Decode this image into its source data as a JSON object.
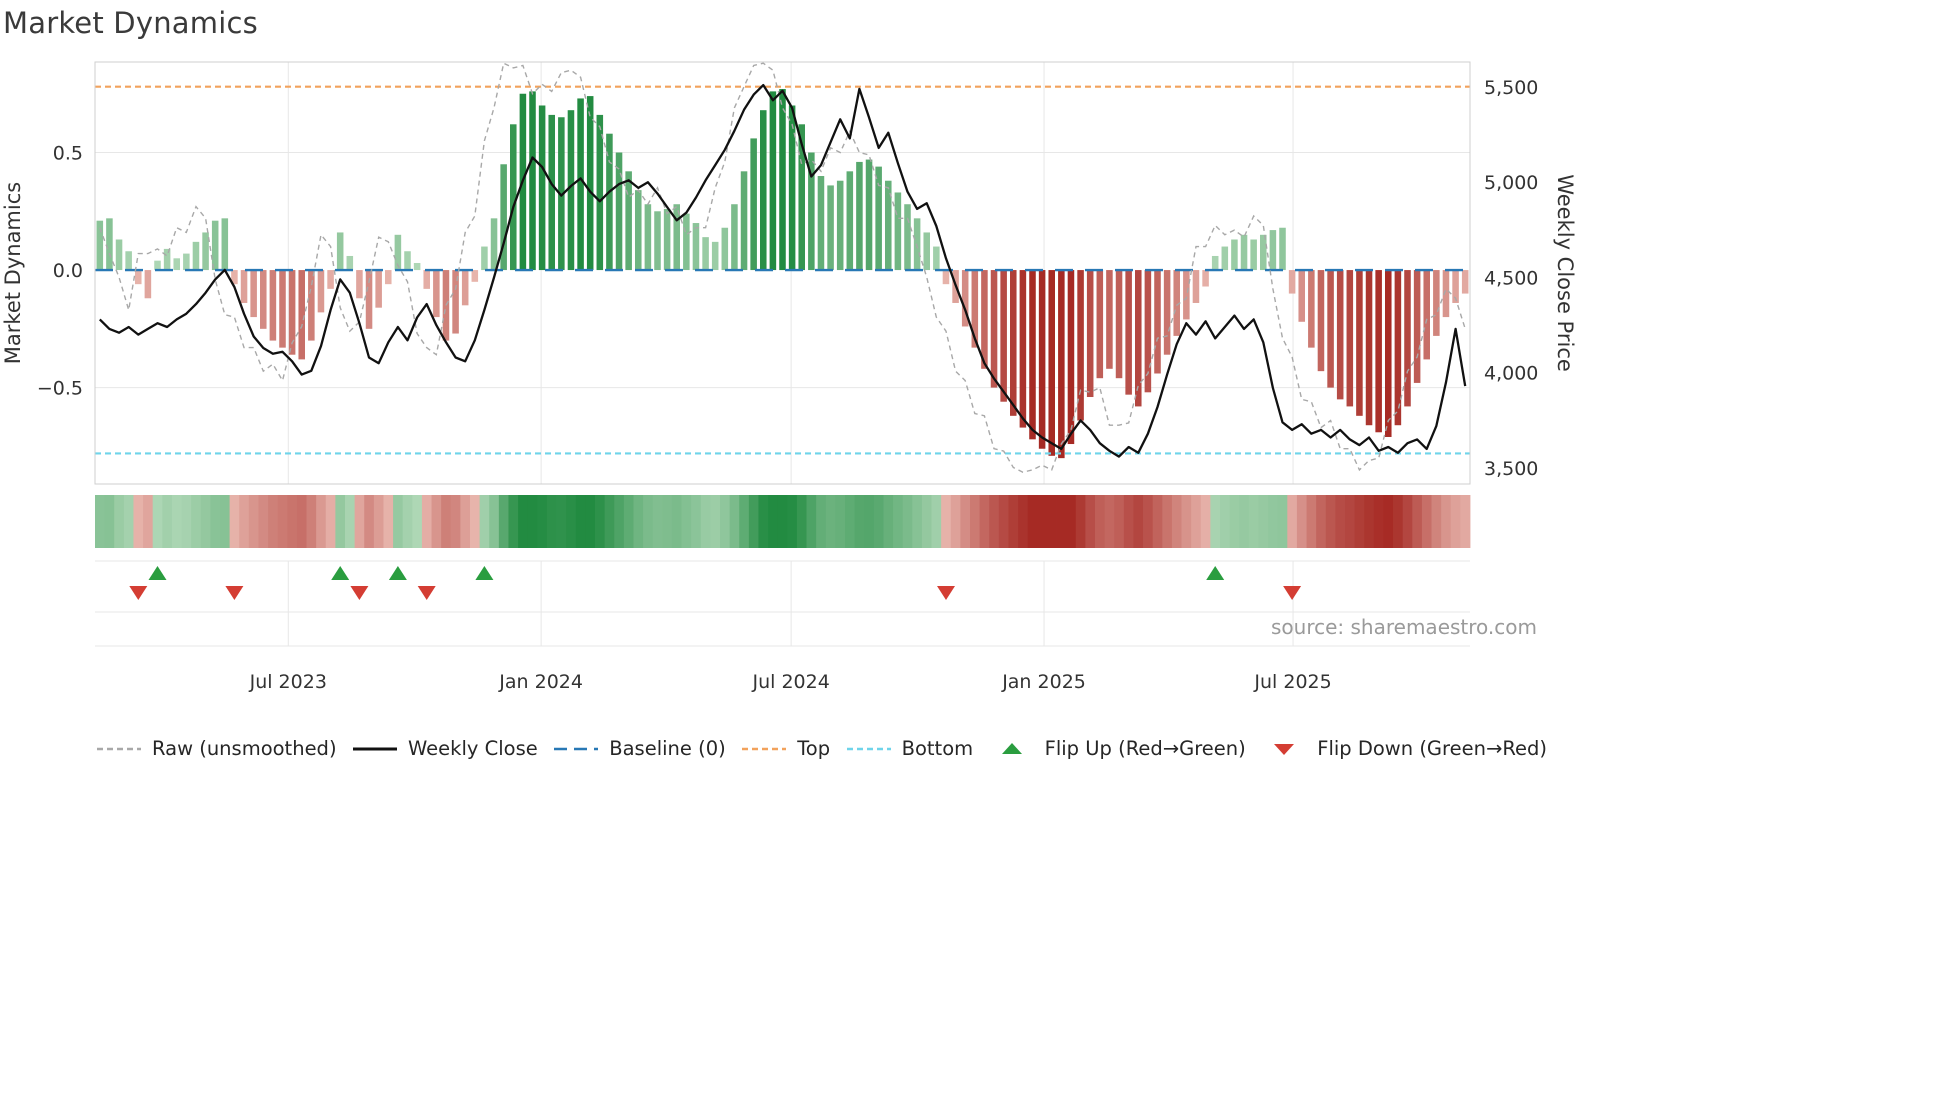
{
  "title": "Market Dynamics",
  "source": "source: sharemaestro.com",
  "chart_data": {
    "type": "bar",
    "title": "Market Dynamics",
    "ylabel_left": "Market Dynamics",
    "ylabel_right": "Weekly Close Price",
    "x_start_date": "2023-02-10",
    "interval": "weekly",
    "grid": true,
    "osc_range": [
      -0.91,
      0.885
    ],
    "price_range": [
      3416,
      5631
    ],
    "baseline": 0,
    "top_line": 0.78,
    "bottom_line": -0.78,
    "x_ticks": [
      {
        "label": "Jul 2023",
        "week": 20.1
      },
      {
        "label": "Jan 2024",
        "week": 46.4
      },
      {
        "label": "Jul 2024",
        "week": 72.4
      },
      {
        "label": "Jan 2025",
        "week": 98.7
      },
      {
        "label": "Jul 2025",
        "week": 124.6
      }
    ],
    "y_ticks_left": [
      {
        "label": "0.5",
        "value": 0.5
      },
      {
        "label": "0.0",
        "value": 0.0
      },
      {
        "label": "−0.5",
        "value": -0.5
      }
    ],
    "y_ticks_right": [
      {
        "label": "5,500",
        "value": 5500
      },
      {
        "label": "5,000",
        "value": 5000
      },
      {
        "label": "4,500",
        "value": 4500
      },
      {
        "label": "4,000",
        "value": 4000
      },
      {
        "label": "3,500",
        "value": 3500
      }
    ],
    "series": [
      {
        "name": "Market Dynamics (bars)",
        "type": "bar",
        "axis": "left",
        "values": [
          0.21,
          0.22,
          0.13,
          0.08,
          -0.06,
          -0.12,
          0.04,
          0.09,
          0.05,
          0.07,
          0.12,
          0.16,
          0.21,
          0.22,
          -0.06,
          -0.14,
          -0.2,
          -0.25,
          -0.3,
          -0.33,
          -0.36,
          -0.38,
          -0.3,
          -0.18,
          -0.08,
          0.16,
          0.06,
          -0.12,
          -0.25,
          -0.16,
          -0.06,
          0.15,
          0.08,
          0.03,
          -0.08,
          -0.2,
          -0.3,
          -0.27,
          -0.15,
          -0.05,
          0.1,
          0.22,
          0.45,
          0.62,
          0.75,
          0.76,
          0.7,
          0.66,
          0.65,
          0.68,
          0.73,
          0.74,
          0.66,
          0.58,
          0.5,
          0.42,
          0.34,
          0.28,
          0.25,
          0.26,
          0.28,
          0.24,
          0.2,
          0.14,
          0.12,
          0.18,
          0.28,
          0.42,
          0.56,
          0.68,
          0.76,
          0.77,
          0.7,
          0.62,
          0.5,
          0.4,
          0.36,
          0.38,
          0.42,
          0.46,
          0.47,
          0.44,
          0.38,
          0.33,
          0.28,
          0.22,
          0.16,
          0.1,
          -0.06,
          -0.14,
          -0.24,
          -0.33,
          -0.42,
          -0.5,
          -0.56,
          -0.62,
          -0.67,
          -0.72,
          -0.76,
          -0.79,
          -0.8,
          -0.74,
          -0.64,
          -0.54,
          -0.46,
          -0.42,
          -0.46,
          -0.53,
          -0.58,
          -0.52,
          -0.44,
          -0.36,
          -0.28,
          -0.21,
          -0.14,
          -0.07,
          0.06,
          0.1,
          0.13,
          0.15,
          0.13,
          0.15,
          0.17,
          0.18,
          -0.1,
          -0.22,
          -0.33,
          -0.43,
          -0.5,
          -0.55,
          -0.58,
          -0.62,
          -0.66,
          -0.69,
          -0.71,
          -0.66,
          -0.58,
          -0.48,
          -0.38,
          -0.28,
          -0.2,
          -0.14,
          -0.1
        ]
      },
      {
        "name": "Raw (unsmoothed)",
        "type": "line",
        "axis": "left",
        "values": [
          0.18,
          0.07,
          -0.03,
          -0.17,
          0.07,
          0.07,
          0.09,
          0.06,
          0.18,
          0.16,
          0.27,
          0.22,
          -0.04,
          -0.19,
          -0.2,
          -0.33,
          -0.33,
          -0.43,
          -0.4,
          -0.47,
          -0.31,
          -0.24,
          -0.07,
          0.15,
          0.1,
          -0.16,
          -0.26,
          -0.22,
          -0.05,
          0.14,
          0.12,
          0.02,
          -0.05,
          -0.27,
          -0.33,
          -0.36,
          -0.15,
          -0.08,
          0.16,
          0.23,
          0.55,
          0.69,
          0.88,
          0.86,
          0.87,
          0.75,
          0.79,
          0.76,
          0.84,
          0.85,
          0.82,
          0.65,
          0.61,
          0.46,
          0.43,
          0.31,
          0.34,
          0.28,
          0.35,
          0.24,
          0.27,
          0.15,
          0.18,
          0.18,
          0.35,
          0.46,
          0.69,
          0.78,
          0.87,
          0.88,
          0.85,
          0.69,
          0.62,
          0.45,
          0.47,
          0.42,
          0.52,
          0.5,
          0.59,
          0.5,
          0.49,
          0.36,
          0.35,
          0.22,
          0.22,
          0.1,
          -0.03,
          -0.2,
          -0.26,
          -0.43,
          -0.47,
          -0.61,
          -0.62,
          -0.76,
          -0.77,
          -0.84,
          -0.86,
          -0.85,
          -0.83,
          -0.85,
          -0.74,
          -0.68,
          -0.51,
          -0.52,
          -0.5,
          -0.66,
          -0.66,
          -0.65,
          -0.49,
          -0.44,
          -0.29,
          -0.28,
          -0.15,
          -0.12,
          0.1,
          0.1,
          0.19,
          0.15,
          0.17,
          0.14,
          0.23,
          0.19,
          -0.08,
          -0.29,
          -0.37,
          -0.55,
          -0.56,
          -0.67,
          -0.64,
          -0.76,
          -0.76,
          -0.85,
          -0.81,
          -0.8,
          -0.64,
          -0.6,
          -0.43,
          -0.37,
          -0.21,
          -0.19,
          -0.08,
          -0.12,
          -0.25
        ]
      },
      {
        "name": "Weekly Close",
        "type": "line",
        "axis": "right",
        "values": [
          4280,
          4230,
          4210,
          4240,
          4200,
          4230,
          4260,
          4240,
          4280,
          4310,
          4360,
          4420,
          4490,
          4540,
          4450,
          4310,
          4190,
          4130,
          4100,
          4110,
          4060,
          3990,
          4010,
          4140,
          4330,
          4490,
          4420,
          4260,
          4080,
          4050,
          4160,
          4240,
          4170,
          4290,
          4360,
          4250,
          4160,
          4080,
          4060,
          4170,
          4330,
          4500,
          4680,
          4870,
          5010,
          5130,
          5080,
          4990,
          4930,
          4980,
          5020,
          4950,
          4900,
          4950,
          4990,
          5010,
          4970,
          5000,
          4940,
          4870,
          4800,
          4840,
          4920,
          5010,
          5090,
          5170,
          5270,
          5380,
          5460,
          5510,
          5430,
          5480,
          5390,
          5200,
          5030,
          5090,
          5210,
          5330,
          5230,
          5490,
          5340,
          5180,
          5260,
          5100,
          4950,
          4860,
          4890,
          4770,
          4600,
          4460,
          4330,
          4180,
          4050,
          3970,
          3900,
          3830,
          3760,
          3700,
          3660,
          3630,
          3600,
          3680,
          3750,
          3700,
          3630,
          3590,
          3560,
          3610,
          3580,
          3680,
          3820,
          3990,
          4150,
          4260,
          4200,
          4270,
          4180,
          4240,
          4300,
          4230,
          4280,
          4160,
          3920,
          3740,
          3700,
          3730,
          3680,
          3700,
          3660,
          3700,
          3650,
          3620,
          3660,
          3590,
          3610,
          3580,
          3630,
          3650,
          3600,
          3720,
          3950,
          4230,
          3930
        ]
      }
    ],
    "flip_up_weeks": [
      6,
      25,
      31,
      40,
      116
    ],
    "flip_down_weeks": [
      4,
      14,
      27,
      34,
      88,
      124
    ],
    "colors": {
      "bar_green_dark": "#228b41",
      "bar_green_light": "#cee8d0",
      "bar_red_dark": "#a62a24",
      "bar_red_light": "#f8d8cf",
      "weekly_close": "#111111",
      "raw": "#a8a8a8",
      "baseline": "#2878b5",
      "top": "#f2a25c",
      "bottom": "#6fd4ea",
      "flip_up": "#2a9d3f",
      "flip_down": "#d43d33",
      "grid": "#e7e7e7",
      "spine": "#cfcfcf",
      "text": "#333333",
      "muted": "#9a9a9a"
    }
  },
  "legend": {
    "items": [
      {
        "label": "Raw (unsmoothed)",
        "type": "line-dash",
        "color": "#a8a8a8"
      },
      {
        "label": "Weekly Close",
        "type": "line-solid",
        "color": "#111111"
      },
      {
        "label": "Baseline (0)",
        "type": "line-longdash",
        "color": "#2878b5"
      },
      {
        "label": "Top",
        "type": "line-dash",
        "color": "#f2a25c"
      },
      {
        "label": "Bottom",
        "type": "line-dash",
        "color": "#6fd4ea"
      },
      {
        "label": "Flip Up (Red→Green)",
        "type": "triangle-up",
        "color": "#2a9d3f"
      },
      {
        "label": "Flip Down (Green→Red)",
        "type": "triangle-down",
        "color": "#d43d33"
      }
    ]
  }
}
